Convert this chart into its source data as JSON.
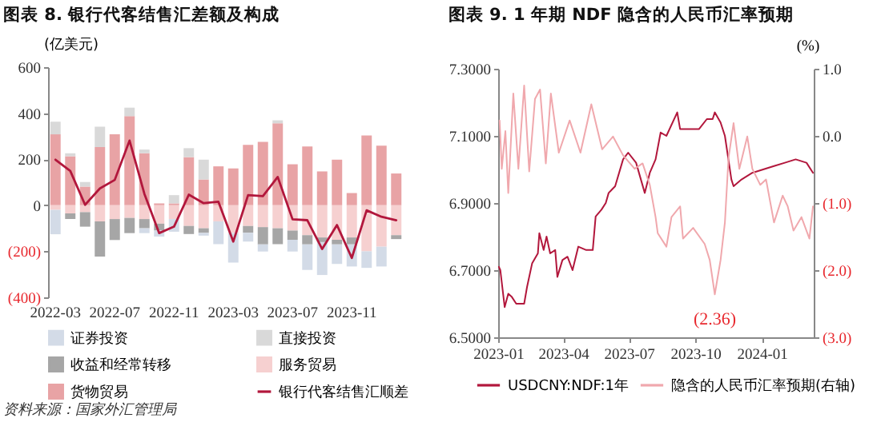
{
  "chart_data": [
    {
      "type": "bar",
      "title": "图表 8. 银行代客结售汇差额及构成",
      "ylabel": "(亿美元)",
      "stacked": true,
      "legend": "bottom",
      "categories": [
        "2022-03",
        null,
        null,
        null,
        "2022-07",
        null,
        null,
        null,
        "2022-11",
        null,
        null,
        null,
        "2023-03",
        null,
        null,
        null,
        "2023-07",
        null,
        null,
        null,
        "2023-11",
        null,
        null,
        null
      ],
      "series": [
        {
          "name": "货物贸易",
          "color": "#e8a3a5",
          "values": [
            308,
            213,
            81,
            253,
            308,
            387,
            226,
            8,
            8,
            209,
            112,
            169,
            160,
            262,
            275,
            356,
            178,
            255,
            147,
            198,
            53,
            303,
            259,
            138
          ]
        },
        {
          "name": "服务贸易",
          "color": "#f6d0d0",
          "values": [
            -20,
            -35,
            -30,
            -70,
            -60,
            -55,
            -60,
            -80,
            -60,
            -90,
            -100,
            -70,
            -120,
            -90,
            -95,
            -100,
            -110,
            -130,
            -140,
            -150,
            -140,
            -200,
            -180,
            -130
          ]
        },
        {
          "name": "收益和经常转移",
          "color": "#a6a6a6",
          "values": [
            null,
            -25,
            -63,
            -153,
            -91,
            -66,
            -40,
            -30,
            null,
            -35,
            -20,
            null,
            null,
            -30,
            -75,
            -69,
            -40,
            -40,
            -20,
            -20,
            -30,
            null,
            null,
            -17
          ]
        },
        {
          "name": "直接投资",
          "color": "#d9d9d9",
          "values": [
            55,
            13,
            20,
            88,
            null,
            37,
            16,
            null,
            36,
            39,
            86,
            null,
            null,
            null,
            null,
            13,
            null,
            null,
            null,
            null,
            null,
            null,
            null,
            null
          ]
        },
        {
          "name": "证券投资",
          "color": "#d3dbe7",
          "values": [
            -106,
            null,
            null,
            null,
            null,
            null,
            -21,
            -26,
            -55,
            null,
            -12,
            -99,
            -129,
            -38,
            -31,
            null,
            -51,
            -111,
            -143,
            -85,
            -96,
            -72,
            -86,
            null
          ]
        },
        {
          "name": "银行代客结售汇顺差",
          "type": "line",
          "color": "#b2173c",
          "values": [
            198,
            149,
            2,
            73,
            110,
            281,
            50,
            -121,
            -93,
            46,
            9,
            15,
            -158,
            44,
            40,
            123,
            -61,
            -65,
            -190,
            -86,
            -229,
            -22,
            -50,
            -65
          ]
        }
      ],
      "ylim": [
        -400,
        600
      ],
      "yticks": [
        {
          "value": -400,
          "label": "(400)"
        },
        {
          "value": -200,
          "label": "(200)"
        },
        0,
        200,
        400,
        600
      ],
      "annotations": [
        "资料来源：国家外汇管理局"
      ]
    },
    {
      "type": "line",
      "title": "图表 9. 1 年期 NDF 隐含的人民币汇率预期",
      "y2label": "(%)",
      "legend": "bottom",
      "series": [
        {
          "name": "USDCNY:NDF:1年",
          "color": "#b2173c",
          "x": [
            "2023-01-02",
            "2023-01-04",
            "2023-01-10",
            "2023-01-15",
            "2023-01-20",
            "2023-01-26",
            "2023-02-06",
            "2023-02-10",
            "2023-02-17",
            "2023-02-25",
            "2023-02-27",
            "2023-03-05",
            "2023-03-09",
            "2023-03-14",
            "2023-03-21",
            "2023-03-24",
            "2023-03-31",
            "2023-04-07",
            "2023-04-14",
            "2023-04-22",
            "2023-05-03",
            "2023-05-12",
            "2023-05-16",
            "2023-05-24",
            "2023-05-30",
            "2023-06-03",
            "2023-06-12",
            "2023-06-23",
            "2023-06-30",
            "2023-07-11",
            "2023-07-23",
            "2023-07-30",
            "2023-08-07",
            "2023-08-14",
            "2023-08-22",
            "2023-09-06",
            "2023-09-10",
            "2023-09-21",
            "2023-10-06",
            "2023-10-17",
            "2023-10-25",
            "2023-10-28",
            "2023-11-05",
            "2023-11-11",
            "2023-11-20",
            "2023-11-23",
            "2023-12-04",
            "2023-12-19",
            "2024-01-03",
            "2024-01-18",
            "2024-02-02",
            "2024-02-17",
            "2024-03-03",
            "2024-03-12"
          ],
          "values": [
            6.71,
            6.7,
            6.59,
            6.63,
            6.62,
            6.6,
            6.6,
            6.65,
            6.72,
            6.75,
            6.81,
            6.76,
            6.8,
            6.75,
            6.76,
            6.68,
            6.73,
            6.74,
            6.7,
            6.77,
            6.76,
            6.76,
            6.86,
            6.88,
            6.9,
            6.93,
            6.95,
            7.03,
            7.05,
            7.02,
            6.93,
            6.99,
            7.03,
            7.11,
            7.1,
            7.17,
            7.12,
            7.12,
            7.12,
            7.15,
            7.15,
            7.17,
            7.14,
            7.1,
            6.97,
            6.95,
            6.97,
            6.99,
            7.0,
            7.01,
            7.02,
            7.03,
            7.02,
            6.99
          ]
        },
        {
          "name": "隐含的人民币汇率预期(右轴)",
          "color": "#f0a8ad",
          "axis": "y2",
          "x": [
            "2023-01-03",
            "2023-01-06",
            "2023-01-11",
            "2023-01-15",
            "2023-01-22",
            "2023-01-29",
            "2023-02-06",
            "2023-02-13",
            "2023-02-21",
            "2023-02-28",
            "2023-03-08",
            "2023-03-15",
            "2023-03-26",
            "2023-04-10",
            "2023-04-25",
            "2023-05-10",
            "2023-05-25",
            "2023-06-09",
            "2023-06-23",
            "2023-07-09",
            "2023-07-20",
            "2023-07-30",
            "2023-08-07",
            "2023-08-10",
            "2023-08-22",
            "2023-08-29",
            "2023-09-10",
            "2023-09-14",
            "2023-09-28",
            "2023-10-14",
            "2023-10-21",
            "2023-10-28",
            "2023-11-05",
            "2023-11-11",
            "2023-11-16",
            "2023-11-23",
            "2023-12-01",
            "2023-12-12",
            "2023-12-19",
            "2023-12-30",
            "2024-01-07",
            "2024-01-18",
            "2024-01-30",
            "2024-02-06",
            "2024-02-14",
            "2024-02-25",
            "2024-03-07",
            "2024-03-12"
          ],
          "values": [
            0.23,
            -0.49,
            0.07,
            -0.85,
            0.63,
            -0.49,
            0.75,
            -0.53,
            0.55,
            0.69,
            -0.41,
            0.63,
            -0.25,
            0.23,
            -0.25,
            0.47,
            -0.2,
            -0.01,
            -0.29,
            -0.49,
            -0.41,
            -0.73,
            -1.21,
            -1.45,
            -1.65,
            -1.21,
            -1.05,
            -1.53,
            -1.37,
            -1.61,
            -1.85,
            -2.36,
            -1.85,
            -1.29,
            -0.33,
            0.19,
            -0.49,
            -0.01,
            -0.49,
            -0.73,
            -0.65,
            -1.29,
            -0.89,
            -1.05,
            -1.41,
            -1.21,
            -1.53,
            -1.05
          ]
        }
      ],
      "xlim": [
        "2023-01-01",
        "2024-03-13"
      ],
      "xticks": [
        "2023-01",
        "2023-04",
        "2023-07",
        "2023-10",
        "2024-01"
      ],
      "ylim": [
        6.5,
        7.3
      ],
      "yticks": [
        {
          "value": 6.5,
          "label": "6.5000"
        },
        {
          "value": 6.7,
          "label": "6.7000"
        },
        {
          "value": 6.9,
          "label": "6.9000"
        },
        {
          "value": 7.1,
          "label": "7.1000"
        },
        {
          "value": 7.3,
          "label": "7.3000"
        }
      ],
      "y2lim": [
        -3,
        1
      ],
      "y2ticks": [
        {
          "value": -3,
          "label": "(3.0)"
        },
        {
          "value": -2,
          "label": "(2.0)"
        },
        {
          "value": -1,
          "label": "(1.0)"
        },
        {
          "value": 0,
          "label": "0.0"
        },
        {
          "value": 1,
          "label": "1.0"
        }
      ],
      "annotations": [
        "(2.36)"
      ]
    }
  ]
}
